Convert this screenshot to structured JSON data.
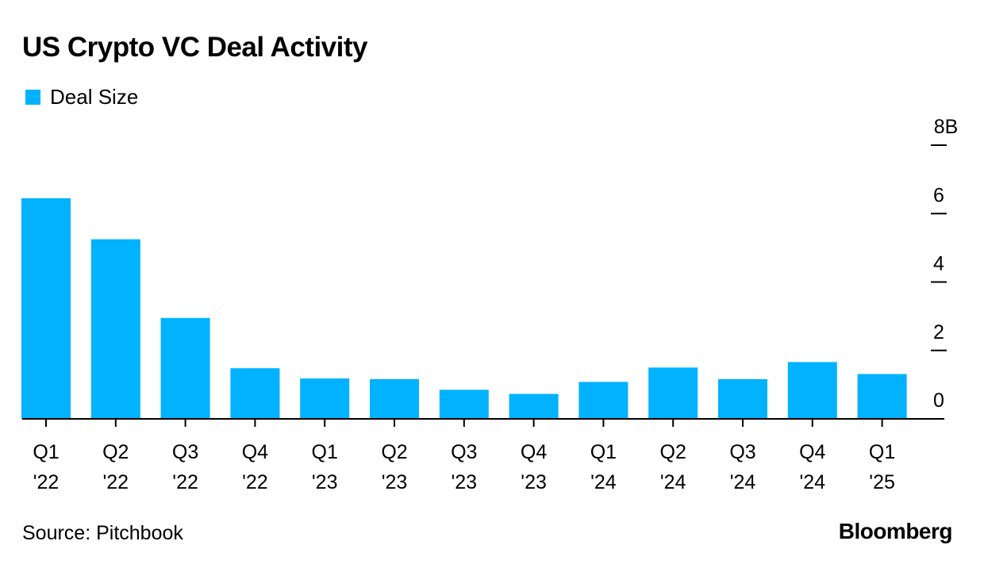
{
  "title": "US Crypto VC Deal Activity",
  "source": "Source: Pitchbook",
  "brand": "Bloomberg",
  "colors": {
    "bar": "#00b2ff",
    "axis": "#000000"
  },
  "chart_data": {
    "type": "bar",
    "title": "US Crypto VC Deal Activity",
    "categories": [
      [
        "Q1",
        "'22"
      ],
      [
        "Q2",
        "'22"
      ],
      [
        "Q3",
        "'22"
      ],
      [
        "Q4",
        "'22"
      ],
      [
        "Q1",
        "'23"
      ],
      [
        "Q2",
        "'23"
      ],
      [
        "Q3",
        "'23"
      ],
      [
        "Q4",
        "'23"
      ],
      [
        "Q1",
        "'24"
      ],
      [
        "Q2",
        "'24"
      ],
      [
        "Q3",
        "'24"
      ],
      [
        "Q4",
        "'24"
      ],
      [
        "Q1",
        "'25"
      ]
    ],
    "series": [
      {
        "name": "Deal Size",
        "values": [
          6.45,
          5.25,
          2.95,
          1.48,
          1.18,
          1.16,
          0.85,
          0.73,
          1.08,
          1.5,
          1.16,
          1.66,
          1.31
        ]
      }
    ],
    "y_ticks": [
      {
        "value": 0,
        "label": "0"
      },
      {
        "value": 2,
        "label": "2"
      },
      {
        "value": 4,
        "label": "4"
      },
      {
        "value": 6,
        "label": "6"
      },
      {
        "value": 8,
        "label": "8B"
      }
    ],
    "ylim": [
      0,
      8
    ],
    "y_axis_side": "right",
    "legend": "top-left",
    "grid": false
  }
}
